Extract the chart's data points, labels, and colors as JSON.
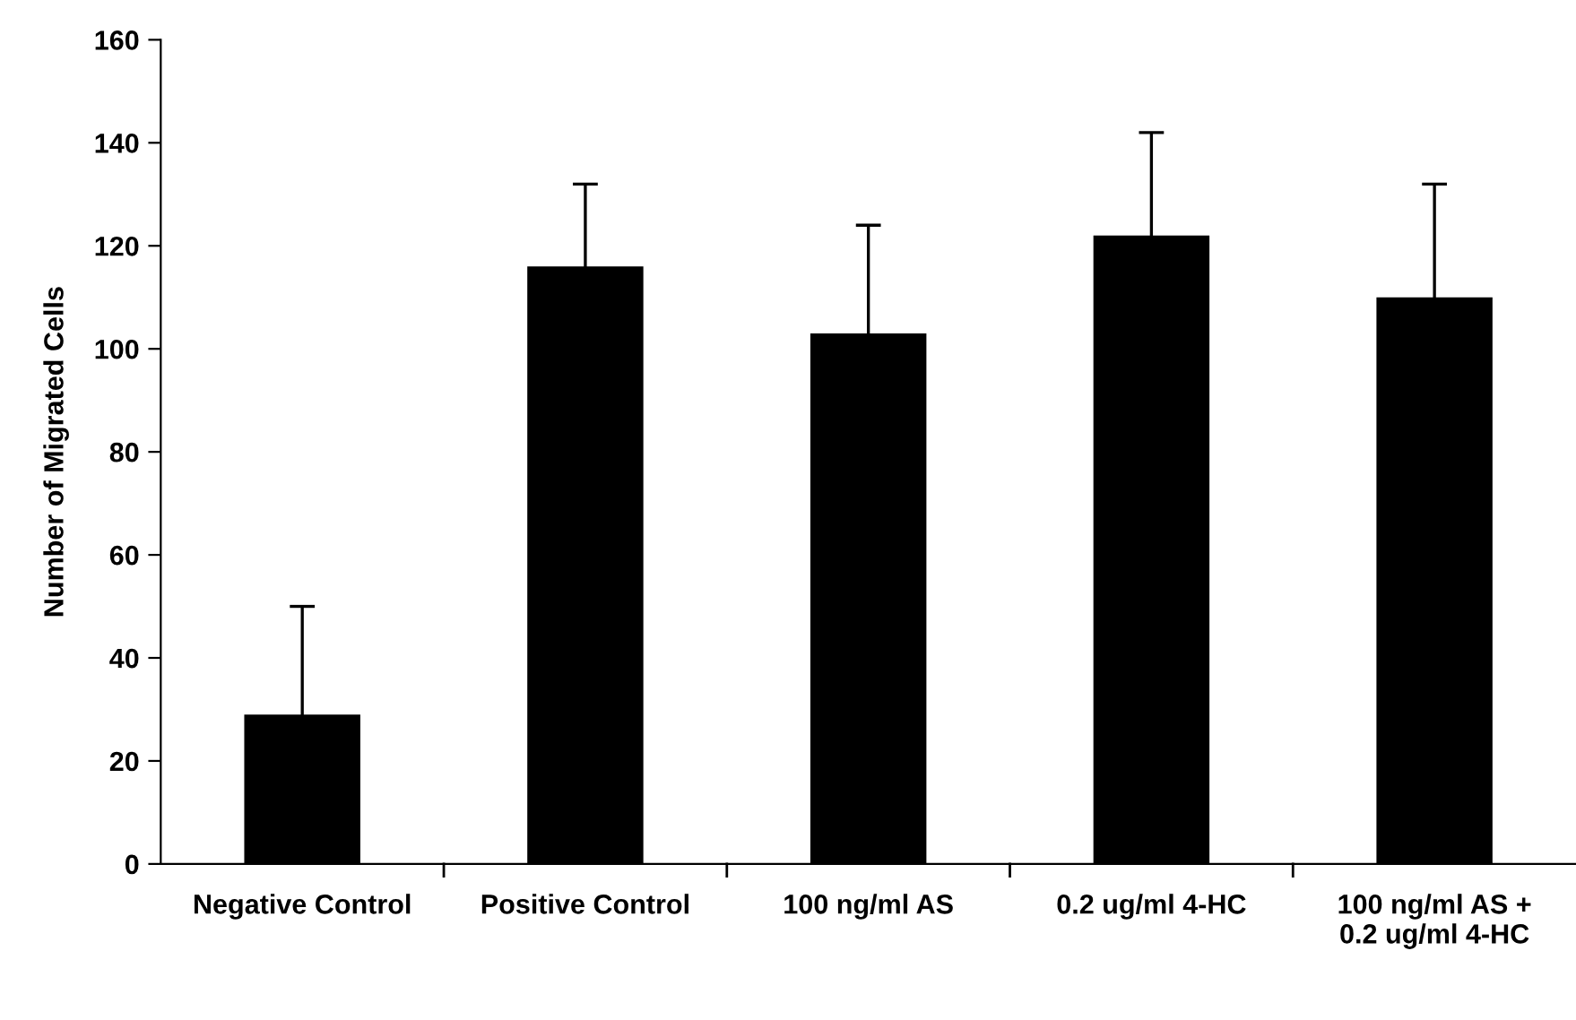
{
  "chart_data": {
    "type": "bar",
    "ylabel": "Number of Migrated Cells",
    "categories": [
      "Negative Control",
      "Positive Control",
      "100 ng/ml AS",
      "0.2 ug/ml 4-HC",
      "100 ng/ml AS +\n0.2 ug/ml 4-HC"
    ],
    "values": [
      29,
      116,
      103,
      122,
      110
    ],
    "errors": [
      21,
      16,
      21,
      20,
      22
    ],
    "color": "#000000",
    "ylim": [
      0,
      160
    ],
    "yticks": [
      0,
      20,
      40,
      60,
      80,
      100,
      120,
      140,
      160
    ],
    "grid": false,
    "legend": false
  }
}
